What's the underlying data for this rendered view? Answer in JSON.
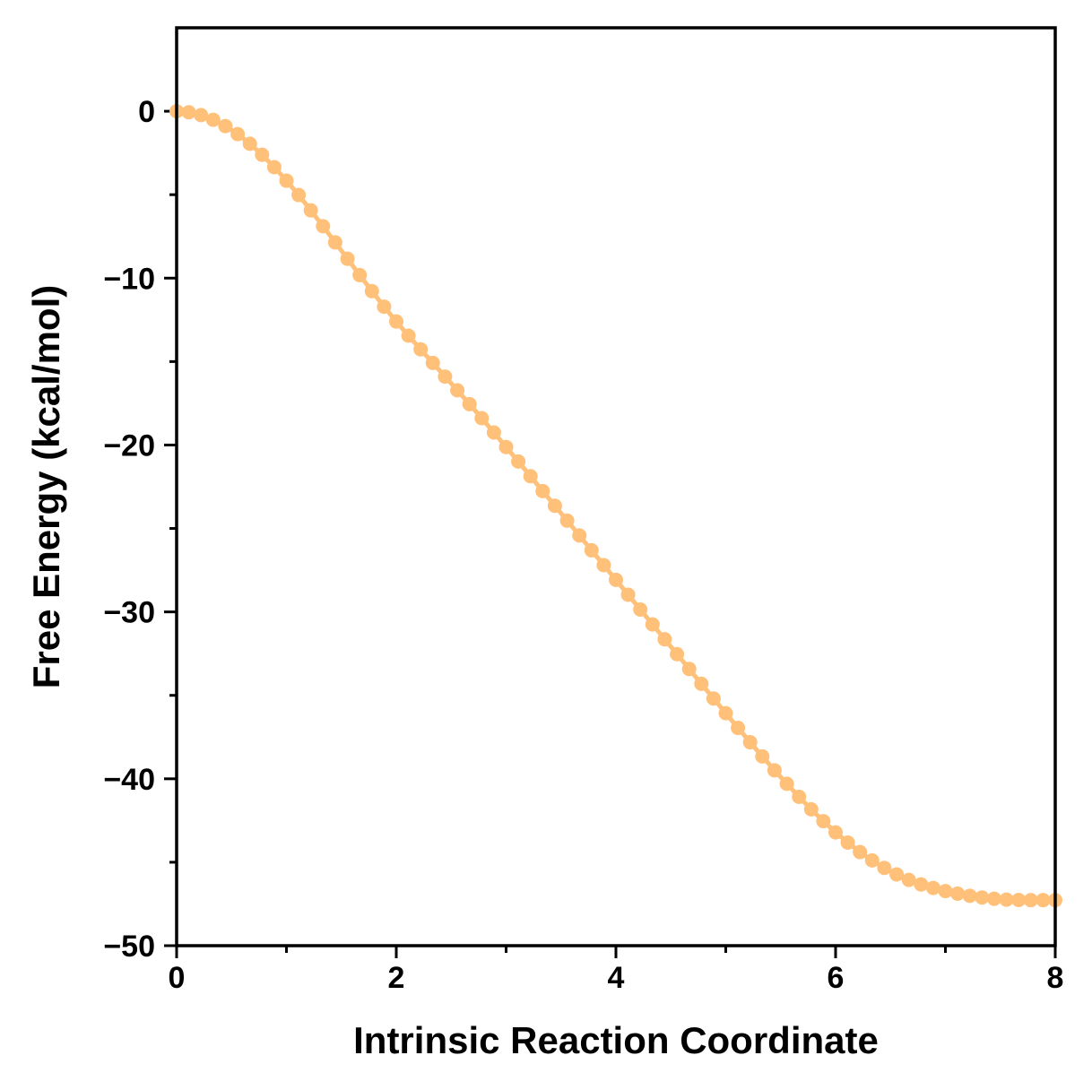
{
  "chart_data": {
    "type": "line",
    "title": "",
    "xlabel": "Intrinsic Reaction Coordinate",
    "ylabel": "Free Energy (kcal/mol)",
    "xlim": [
      0,
      8
    ],
    "ylim": [
      -50,
      5
    ],
    "grid": false,
    "legend": "none",
    "x_major_ticks": [
      0,
      2,
      4,
      6,
      8
    ],
    "x_tick_labels": [
      "0",
      "2",
      "4",
      "6",
      "8"
    ],
    "x_minor_ticks": [
      1,
      3,
      5,
      7
    ],
    "y_major_ticks": [
      0,
      -10,
      -20,
      -30,
      -40,
      -50
    ],
    "y_tick_labels": [
      "0",
      "−10",
      "−20",
      "−30",
      "−40",
      "−50"
    ],
    "y_minor_ticks": [
      -5,
      -15,
      -25,
      -35,
      -45
    ],
    "series": [
      {
        "color": "#FFC07A",
        "marker": "circle",
        "x": [
          0.0,
          0.111,
          0.222,
          0.333,
          0.444,
          0.556,
          0.667,
          0.778,
          0.889,
          1.0,
          1.111,
          1.222,
          1.333,
          1.444,
          1.556,
          1.667,
          1.778,
          1.889,
          2.0,
          2.111,
          2.222,
          2.333,
          2.444,
          2.556,
          2.667,
          2.778,
          2.889,
          3.0,
          3.111,
          3.222,
          3.333,
          3.444,
          3.556,
          3.667,
          3.778,
          3.889,
          4.0,
          4.111,
          4.222,
          4.333,
          4.444,
          4.556,
          4.667,
          4.778,
          4.889,
          5.0,
          5.111,
          5.222,
          5.333,
          5.444,
          5.556,
          5.667,
          5.778,
          5.889,
          6.0,
          6.111,
          6.222,
          6.333,
          6.444,
          6.556,
          6.667,
          6.778,
          6.889,
          7.0,
          7.111,
          7.222,
          7.333,
          7.444,
          7.556,
          7.667,
          7.778,
          7.889,
          8.0
        ],
        "y": [
          0.0,
          -0.06,
          -0.23,
          -0.51,
          -0.89,
          -1.37,
          -1.95,
          -2.61,
          -3.35,
          -4.16,
          -5.02,
          -5.94,
          -6.89,
          -7.86,
          -8.84,
          -9.82,
          -10.78,
          -11.71,
          -12.6,
          -13.45,
          -14.27,
          -15.08,
          -15.9,
          -16.72,
          -17.55,
          -18.39,
          -19.25,
          -20.12,
          -20.99,
          -21.87,
          -22.76,
          -23.64,
          -24.53,
          -25.42,
          -26.31,
          -27.2,
          -28.08,
          -28.97,
          -29.86,
          -30.75,
          -31.64,
          -32.53,
          -33.42,
          -34.31,
          -35.19,
          -36.07,
          -36.95,
          -37.81,
          -38.66,
          -39.49,
          -40.3,
          -41.08,
          -41.83,
          -42.54,
          -43.21,
          -43.82,
          -44.39,
          -44.89,
          -45.34,
          -45.73,
          -46.06,
          -46.33,
          -46.54,
          -46.73,
          -46.88,
          -47.01,
          -47.11,
          -47.19,
          -47.24,
          -47.26,
          -47.27,
          -47.27,
          -47.27
        ]
      }
    ]
  }
}
